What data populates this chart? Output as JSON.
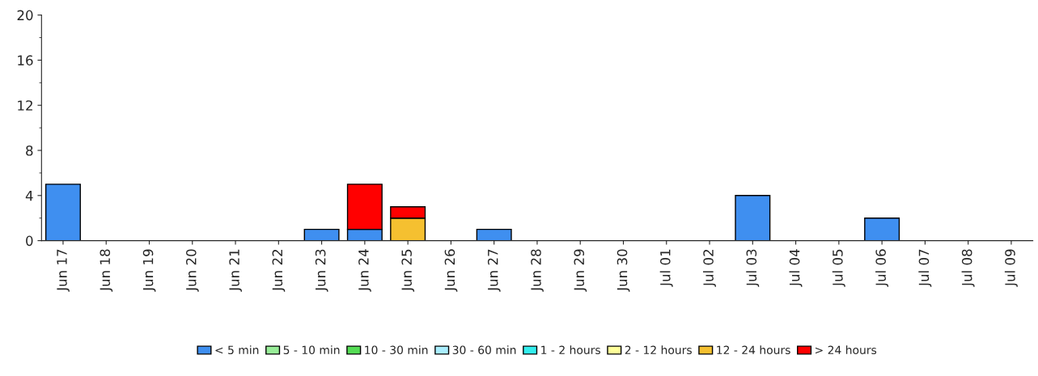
{
  "chart_data": {
    "type": "bar",
    "stacked": true,
    "legend": "bottom",
    "grid": false,
    "ylim": [
      0,
      20
    ],
    "yticks": [
      0,
      4,
      8,
      12,
      16,
      20
    ],
    "categories": [
      "Jun 17",
      "Jun 18",
      "Jun 19",
      "Jun 20",
      "Jun 21",
      "Jun 22",
      "Jun 23",
      "Jun 24",
      "Jun 25",
      "Jun 26",
      "Jun 27",
      "Jun 28",
      "Jun 29",
      "Jun 30",
      "Jul 01",
      "Jul 02",
      "Jul 03",
      "Jul 04",
      "Jul 05",
      "Jul 06",
      "Jul 07",
      "Jul 08",
      "Jul 09"
    ],
    "series": [
      {
        "name": "< 5 min",
        "color": "#3f8ff0",
        "values": [
          5,
          0,
          0,
          0,
          0,
          0,
          1,
          1,
          0,
          0,
          1,
          0,
          0,
          0,
          0,
          0,
          4,
          0,
          0,
          2,
          0,
          0,
          0
        ]
      },
      {
        "name": "5 - 10 min",
        "color": "#99ee99",
        "values": [
          0,
          0,
          0,
          0,
          0,
          0,
          0,
          0,
          0,
          0,
          0,
          0,
          0,
          0,
          0,
          0,
          0,
          0,
          0,
          0,
          0,
          0,
          0
        ]
      },
      {
        "name": "10 - 30 min",
        "color": "#55dd55",
        "values": [
          0,
          0,
          0,
          0,
          0,
          0,
          0,
          0,
          0,
          0,
          0,
          0,
          0,
          0,
          0,
          0,
          0,
          0,
          0,
          0,
          0,
          0,
          0
        ]
      },
      {
        "name": "30 - 60 min",
        "color": "#aaeeff",
        "values": [
          0,
          0,
          0,
          0,
          0,
          0,
          0,
          0,
          0,
          0,
          0,
          0,
          0,
          0,
          0,
          0,
          0,
          0,
          0,
          0,
          0,
          0,
          0
        ]
      },
      {
        "name": "1 - 2 hours",
        "color": "#33eeee",
        "values": [
          0,
          0,
          0,
          0,
          0,
          0,
          0,
          0,
          0,
          0,
          0,
          0,
          0,
          0,
          0,
          0,
          0,
          0,
          0,
          0,
          0,
          0,
          0
        ]
      },
      {
        "name": "2 - 12 hours",
        "color": "#ffff99",
        "values": [
          0,
          0,
          0,
          0,
          0,
          0,
          0,
          0,
          0,
          0,
          0,
          0,
          0,
          0,
          0,
          0,
          0,
          0,
          0,
          0,
          0,
          0,
          0
        ]
      },
      {
        "name": "12 - 24 hours",
        "color": "#f5c030",
        "values": [
          0,
          0,
          0,
          0,
          0,
          0,
          0,
          0,
          2,
          0,
          0,
          0,
          0,
          0,
          0,
          0,
          0,
          0,
          0,
          0,
          0,
          0,
          0
        ]
      },
      {
        "name": "> 24 hours",
        "color": "#ff0000",
        "values": [
          0,
          0,
          0,
          0,
          0,
          0,
          0,
          4,
          1,
          0,
          0,
          0,
          0,
          0,
          0,
          0,
          0,
          0,
          0,
          0,
          0,
          0,
          0
        ]
      }
    ]
  }
}
